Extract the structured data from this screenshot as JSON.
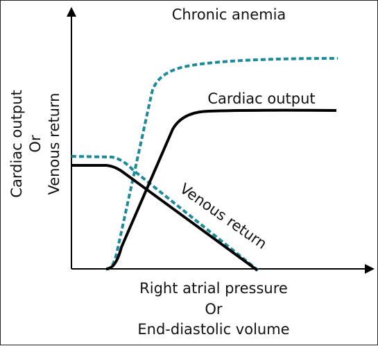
{
  "title": "Chronic anemia",
  "y_axis": {
    "line1": "Cardiac output",
    "line2": "Or",
    "line3": "Venous return"
  },
  "x_axis": {
    "line1": "Right atrial pressure",
    "line2": "Or",
    "line3": "End-diastolic volume"
  },
  "curve_labels": {
    "cardiac_output": "Cardiac output",
    "venous_return": "Venous return"
  },
  "colors": {
    "normal_curves": "#000000",
    "anemia_curves": "#1b8a99",
    "axes": "#000000"
  }
}
